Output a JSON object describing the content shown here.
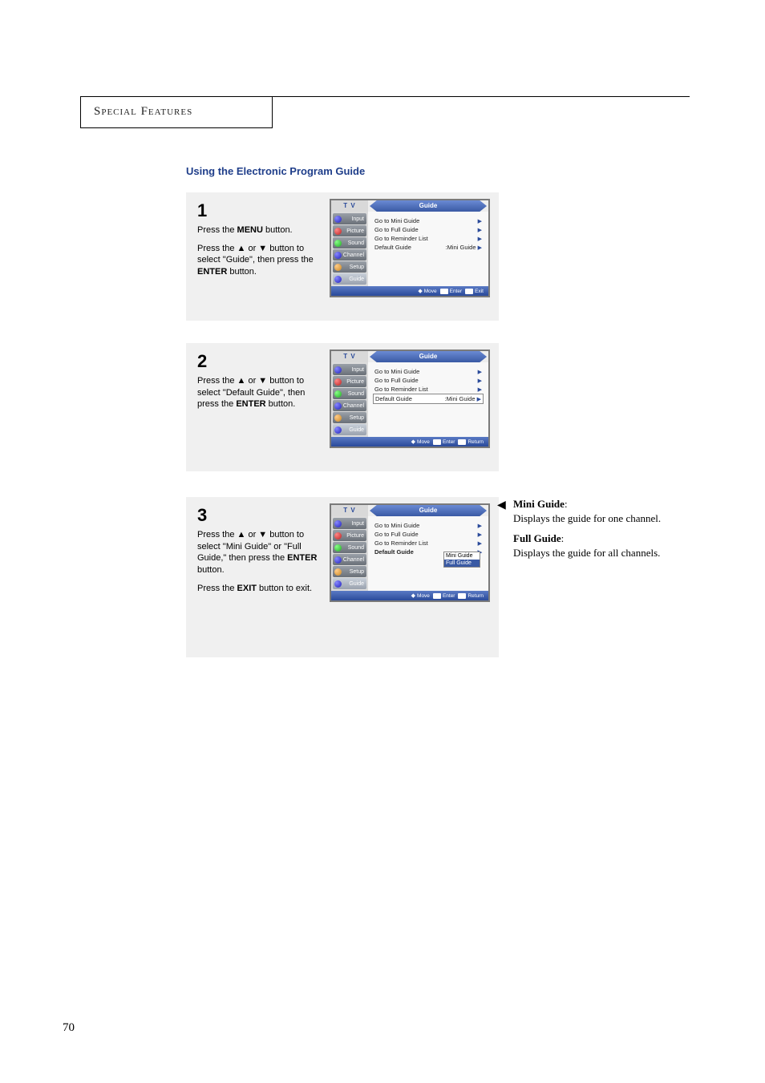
{
  "section_header": "Special Features",
  "title": "Using the Electronic Program Guide",
  "page_number": "70",
  "steps": [
    {
      "num": "1",
      "paras": [
        "Press the <b>MENU</b> button.",
        "Press the ▲ or ▼ button to select \"Guide\", then press the <b>ENTER</b> button."
      ],
      "tv": {
        "tv_label": "T V",
        "title": "Guide",
        "tabs": [
          "Input",
          "Picture",
          "Sound",
          "Channel",
          "Setup",
          "Guide"
        ],
        "selected_tab": 5,
        "rows": [
          {
            "label": "Go to Mini Guide",
            "value": "",
            "arrow": true,
            "boxed": false,
            "bold": false
          },
          {
            "label": "Go to Full Guide",
            "value": "",
            "arrow": true,
            "boxed": false,
            "bold": false
          },
          {
            "label": "Go to Reminder List",
            "value": "",
            "arrow": true,
            "boxed": false,
            "bold": false
          },
          {
            "label": "Default Guide",
            "value": ":Mini Guide",
            "arrow": true,
            "boxed": false,
            "bold": false
          }
        ],
        "submenu": null,
        "footer": [
          "Move",
          "Enter",
          "Exit"
        ]
      }
    },
    {
      "num": "2",
      "paras": [
        "Press the ▲ or ▼ button to select \"Default Guide\", then press the <b>ENTER</b> button."
      ],
      "tv": {
        "tv_label": "T V",
        "title": "Guide",
        "tabs": [
          "Input",
          "Picture",
          "Sound",
          "Channel",
          "Setup",
          "Guide"
        ],
        "selected_tab": 5,
        "rows": [
          {
            "label": "Go to Mini Guide",
            "value": "",
            "arrow": true,
            "boxed": false,
            "bold": false
          },
          {
            "label": "Go to Full Guide",
            "value": "",
            "arrow": true,
            "boxed": false,
            "bold": false
          },
          {
            "label": "Go to Reminder List",
            "value": "",
            "arrow": true,
            "boxed": false,
            "bold": false
          },
          {
            "label": "Default Guide",
            "value": ":Mini Guide",
            "arrow": true,
            "boxed": true,
            "bold": false
          }
        ],
        "submenu": null,
        "footer": [
          "Move",
          "Enter",
          "Return"
        ]
      }
    },
    {
      "num": "3",
      "paras": [
        "Press the ▲ or ▼ button to select \"Mini Guide\" or \"Full Guide,\" then press the <b>ENTER</b> button.",
        "Press the <b>EXIT</b> button to exit."
      ],
      "tv": {
        "tv_label": "T V",
        "title": "Guide",
        "tabs": [
          "Input",
          "Picture",
          "Sound",
          "Channel",
          "Setup",
          "Guide"
        ],
        "selected_tab": 5,
        "rows": [
          {
            "label": "Go to Mini Guide",
            "value": "",
            "arrow": true,
            "boxed": false,
            "bold": false
          },
          {
            "label": "Go to Full Guide",
            "value": "",
            "arrow": true,
            "boxed": false,
            "bold": false
          },
          {
            "label": "Go to Reminder List",
            "value": "",
            "arrow": true,
            "boxed": false,
            "bold": false
          },
          {
            "label": "Default Guide",
            "value": "",
            "arrow": true,
            "boxed": false,
            "bold": true
          }
        ],
        "submenu": {
          "items": [
            "Mini Guide",
            "Full Guide"
          ],
          "highlight": 1
        },
        "footer": [
          "Move",
          "Enter",
          "Return"
        ]
      }
    }
  ],
  "side_note": {
    "items": [
      {
        "title": "Mini Guide",
        "desc": "Displays the guide for one channel."
      },
      {
        "title": "Full Guide",
        "desc": "Displays the guide for all channels."
      }
    ]
  },
  "tab_icon_colors": [
    "blue",
    "red",
    "green",
    "blue",
    "orange",
    "blue"
  ],
  "colors": {
    "title": "#1f3e8a",
    "block_bg": "#f0f0f0"
  }
}
